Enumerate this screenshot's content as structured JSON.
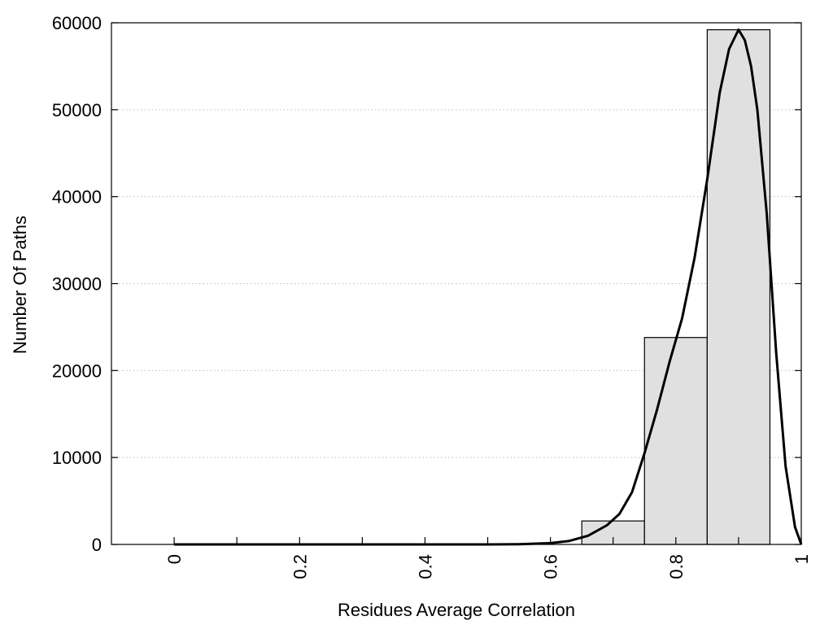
{
  "chart_data": {
    "type": "bar",
    "title": "",
    "xlabel": "Residues Average Correlation",
    "ylabel": "Number Of Paths",
    "xlim": [
      -0.1,
      1.0
    ],
    "ylim": [
      0,
      60000
    ],
    "x_ticks": [
      0,
      0.2,
      0.4,
      0.6,
      0.8,
      1
    ],
    "x_tick_labels": [
      "0",
      "0.2",
      "0.4",
      "0.6",
      "0.8",
      "1"
    ],
    "x_minor_ticks": [
      0.1,
      0.3,
      0.5,
      0.7,
      0.9
    ],
    "y_ticks": [
      0,
      10000,
      20000,
      30000,
      40000,
      50000,
      60000
    ],
    "y_tick_labels": [
      "0",
      "10000",
      "20000",
      "30000",
      "40000",
      "50000",
      "60000"
    ],
    "grid": "horizontal dotted",
    "bar_fill": "#e0e0e0",
    "bar_stroke": "#000000",
    "curve_color": "#000000",
    "bars": [
      {
        "x0": 0.65,
        "x1": 0.75,
        "value": 2700
      },
      {
        "x0": 0.75,
        "x1": 0.85,
        "value": 23800
      },
      {
        "x0": 0.85,
        "x1": 0.95,
        "value": 59200
      }
    ],
    "curve": [
      [
        0.0,
        0
      ],
      [
        0.5,
        0
      ],
      [
        0.55,
        30
      ],
      [
        0.6,
        150
      ],
      [
        0.63,
        400
      ],
      [
        0.66,
        1000
      ],
      [
        0.69,
        2200
      ],
      [
        0.71,
        3500
      ],
      [
        0.73,
        6000
      ],
      [
        0.75,
        10500
      ],
      [
        0.77,
        15500
      ],
      [
        0.79,
        21000
      ],
      [
        0.81,
        26000
      ],
      [
        0.83,
        33000
      ],
      [
        0.85,
        42000
      ],
      [
        0.87,
        52000
      ],
      [
        0.885,
        57000
      ],
      [
        0.9,
        59200
      ],
      [
        0.91,
        58000
      ],
      [
        0.92,
        55000
      ],
      [
        0.93,
        50000
      ],
      [
        0.945,
        38000
      ],
      [
        0.96,
        22000
      ],
      [
        0.975,
        9000
      ],
      [
        0.99,
        2000
      ],
      [
        1.0,
        0
      ]
    ]
  }
}
